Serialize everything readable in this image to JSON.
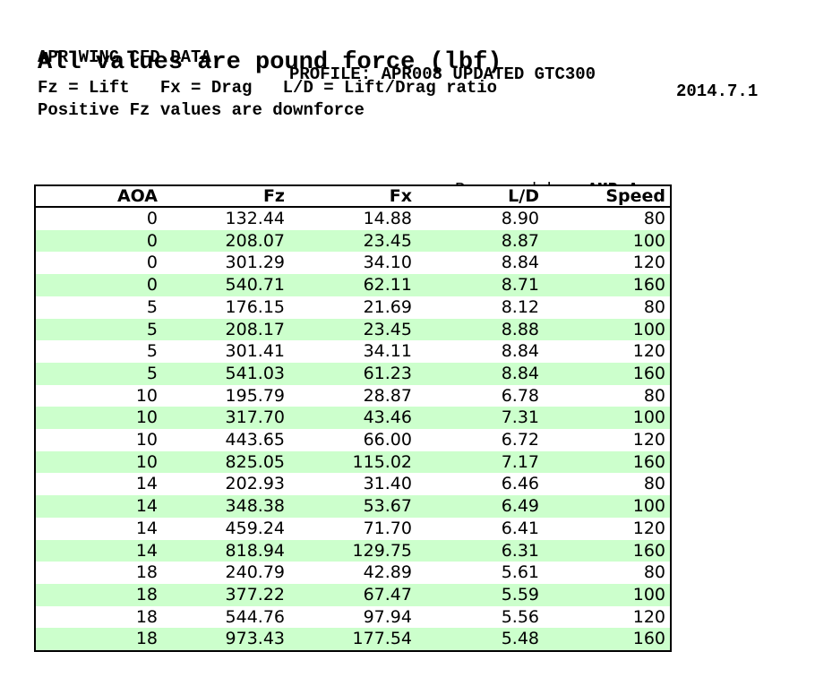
{
  "header": {
    "title_left": "APR WING CFD DATA",
    "title_center": "PROFILE: APR008 UPDATED GTC300",
    "title_right": "2014.7.1",
    "subtitle": "All values are pound force (lbf)",
    "legend": "Fz = Lift   Fx = Drag   L/D = Lift/Drag ratio",
    "note": "Positive Fz values are downforce"
  },
  "prepared_by": {
    "label": "Prepared by:",
    "value": "AMB Aero"
  },
  "table": {
    "columns": [
      "AOA",
      "Fz",
      "Fx",
      "L/D",
      "Speed"
    ],
    "rows": [
      [
        "0",
        "132.44",
        "14.88",
        "8.90",
        "80"
      ],
      [
        "0",
        "208.07",
        "23.45",
        "8.87",
        "100"
      ],
      [
        "0",
        "301.29",
        "34.10",
        "8.84",
        "120"
      ],
      [
        "0",
        "540.71",
        "62.11",
        "8.71",
        "160"
      ],
      [
        "5",
        "176.15",
        "21.69",
        "8.12",
        "80"
      ],
      [
        "5",
        "208.17",
        "23.45",
        "8.88",
        "100"
      ],
      [
        "5",
        "301.41",
        "34.11",
        "8.84",
        "120"
      ],
      [
        "5",
        "541.03",
        "61.23",
        "8.84",
        "160"
      ],
      [
        "10",
        "195.79",
        "28.87",
        "6.78",
        "80"
      ],
      [
        "10",
        "317.70",
        "43.46",
        "7.31",
        "100"
      ],
      [
        "10",
        "443.65",
        "66.00",
        "6.72",
        "120"
      ],
      [
        "10",
        "825.05",
        "115.02",
        "7.17",
        "160"
      ],
      [
        "14",
        "202.93",
        "31.40",
        "6.46",
        "80"
      ],
      [
        "14",
        "348.38",
        "53.67",
        "6.49",
        "100"
      ],
      [
        "14",
        "459.24",
        "71.70",
        "6.41",
        "120"
      ],
      [
        "14",
        "818.94",
        "129.75",
        "6.31",
        "160"
      ],
      [
        "18",
        "240.79",
        "42.89",
        "5.61",
        "80"
      ],
      [
        "18",
        "377.22",
        "67.47",
        "5.59",
        "100"
      ],
      [
        "18",
        "544.76",
        "97.94",
        "5.56",
        "120"
      ],
      [
        "18",
        "973.43",
        "177.54",
        "5.48",
        "160"
      ]
    ]
  },
  "colors": {
    "row_alt_green": "#ccffcc",
    "border": "#000000",
    "background": "#ffffff"
  }
}
